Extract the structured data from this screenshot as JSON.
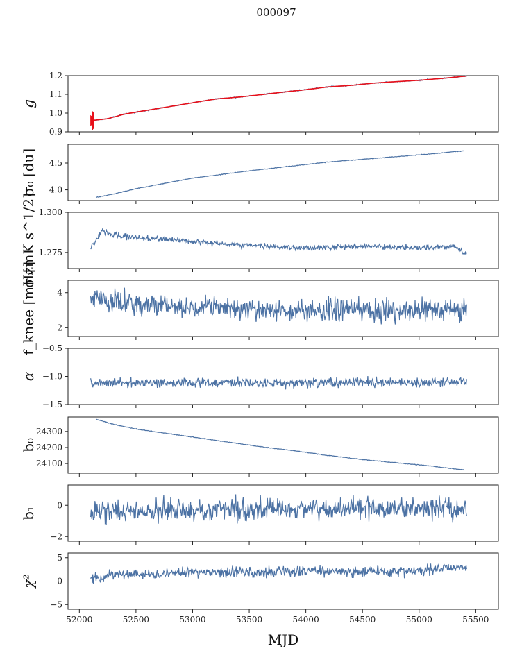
{
  "figure": {
    "title": "000097",
    "xlabel": "MJD"
  },
  "colors": {
    "series": "#4c72a4",
    "overlay": "#e8101a"
  },
  "chart_data": {
    "type": "line",
    "title": "000097",
    "xlabel": "MJD",
    "x_range": [
      51900,
      55700
    ],
    "x_ticks": [
      52000,
      52500,
      53000,
      53500,
      54000,
      54500,
      55000,
      55500
    ],
    "x_span": [
      52100,
      55420
    ],
    "panels": [
      {
        "id": "g",
        "ylabel": "g",
        "ylim": [
          0.9,
          1.2
        ],
        "yticks": [
          0.9,
          1.0,
          1.1,
          1.2
        ],
        "ytick_labels": [
          "0.9",
          "1.0",
          "1.1",
          "1.2"
        ],
        "series": [
          {
            "x": [
              52100,
              52250,
              52400,
              52600,
              52800,
              53000,
              53200,
              53400,
              53600,
              53800,
              54000,
              54200,
              54400,
              54600,
              54800,
              55000,
              55200,
              55420
            ],
            "y": [
              0.96,
              0.97,
              0.995,
              1.015,
              1.035,
              1.055,
              1.075,
              1.085,
              1.098,
              1.112,
              1.125,
              1.14,
              1.148,
              1.16,
              1.168,
              1.175,
              1.185,
              1.198
            ],
            "noise": 0.002,
            "overlay": true
          }
        ]
      },
      {
        "id": "sigma0-du",
        "ylabel": "σ₀ [du]",
        "ylim": [
          3.8,
          4.85
        ],
        "yticks": [
          4.0,
          4.5
        ],
        "ytick_labels": [
          "4.0",
          "4.5"
        ],
        "series": [
          {
            "x": [
              52150,
              52300,
              52500,
              52800,
              53000,
              53300,
              53600,
              53900,
              54200,
              54500,
              54800,
              55100,
              55400
            ],
            "y": [
              3.86,
              3.92,
              4.02,
              4.14,
              4.22,
              4.3,
              4.38,
              4.45,
              4.52,
              4.57,
              4.62,
              4.67,
              4.73
            ],
            "noise": 0.004
          }
        ]
      },
      {
        "id": "sigma0-mk",
        "ylabel": "σ₀[mK s^1/2]",
        "ylim": [
          1.265,
          1.3
        ],
        "yticks": [
          1.275,
          1.3
        ],
        "ytick_labels": [
          "1.275",
          "1.300"
        ],
        "series": [
          {
            "x": [
              52100,
              52200,
              52300,
              52500,
              52800,
              53000,
              53300,
              53600,
              53900,
              54200,
              54500,
              54800,
              55100,
              55300,
              55420
            ],
            "y": [
              1.278,
              1.288,
              1.286,
              1.284,
              1.283,
              1.282,
              1.28,
              1.279,
              1.278,
              1.278,
              1.279,
              1.278,
              1.278,
              1.279,
              1.274
            ],
            "noise": 0.0012
          }
        ]
      },
      {
        "id": "fknee",
        "ylabel": "f_knee [mHz]",
        "ylim": [
          1.5,
          4.7
        ],
        "yticks": [
          2,
          4
        ],
        "ytick_labels": [
          "2",
          "4"
        ],
        "series": [
          {
            "x": [
              52100,
              52300,
              52600,
              53000,
              53400,
              53800,
              54200,
              54600,
              55000,
              55420
            ],
            "y": [
              3.8,
              3.5,
              3.3,
              3.15,
              3.05,
              3.0,
              3.0,
              3.0,
              3.0,
              3.0
            ],
            "noise": 0.45
          }
        ]
      },
      {
        "id": "alpha",
        "ylabel": "α",
        "ylim": [
          -1.5,
          -0.5
        ],
        "yticks": [
          -1.5,
          -1.0,
          -0.5
        ],
        "ytick_labels": [
          "−1.5",
          "−1.0",
          "−0.5"
        ],
        "series": [
          {
            "x": [
              52100,
              53000,
              54000,
              55420
            ],
            "y": [
              -1.12,
              -1.11,
              -1.11,
              -1.1
            ],
            "noise": 0.06
          }
        ]
      },
      {
        "id": "b0",
        "ylabel": "b₀",
        "ylim": [
          24040,
          24390
        ],
        "yticks": [
          24100,
          24200,
          24300
        ],
        "ytick_labels": [
          "24100",
          "24200",
          "24300"
        ],
        "series": [
          {
            "x": [
              52150,
              52300,
              52500,
              52800,
              53000,
              53300,
              53600,
              53900,
              54200,
              54500,
              54800,
              55100,
              55400
            ],
            "y": [
              24375,
              24345,
              24315,
              24285,
              24265,
              24235,
              24205,
              24180,
              24150,
              24125,
              24105,
              24085,
              24060
            ],
            "noise": 1.5
          }
        ]
      },
      {
        "id": "b1",
        "ylabel": "b₁",
        "ylim": [
          -2.3,
          1.3
        ],
        "yticks": [
          -2,
          0
        ],
        "ytick_labels": [
          "−2",
          "0"
        ],
        "series": [
          {
            "x": [
              52100,
              53000,
              54000,
              55420
            ],
            "y": [
              -0.4,
              -0.3,
              -0.2,
              -0.2
            ],
            "noise": 0.5
          }
        ]
      },
      {
        "id": "chi2",
        "ylabel": "χ²",
        "ylim": [
          -6,
          6
        ],
        "yticks": [
          -5,
          0,
          5
        ],
        "ytick_labels": [
          "−5",
          "0",
          "5"
        ],
        "series": [
          {
            "x": [
              52100,
              52400,
              53000,
              53600,
              54200,
              54800,
              55420
            ],
            "y": [
              0.5,
              1.5,
              1.8,
              2.0,
              2.0,
              2.0,
              3.0
            ],
            "noise": 0.8
          }
        ]
      }
    ]
  }
}
